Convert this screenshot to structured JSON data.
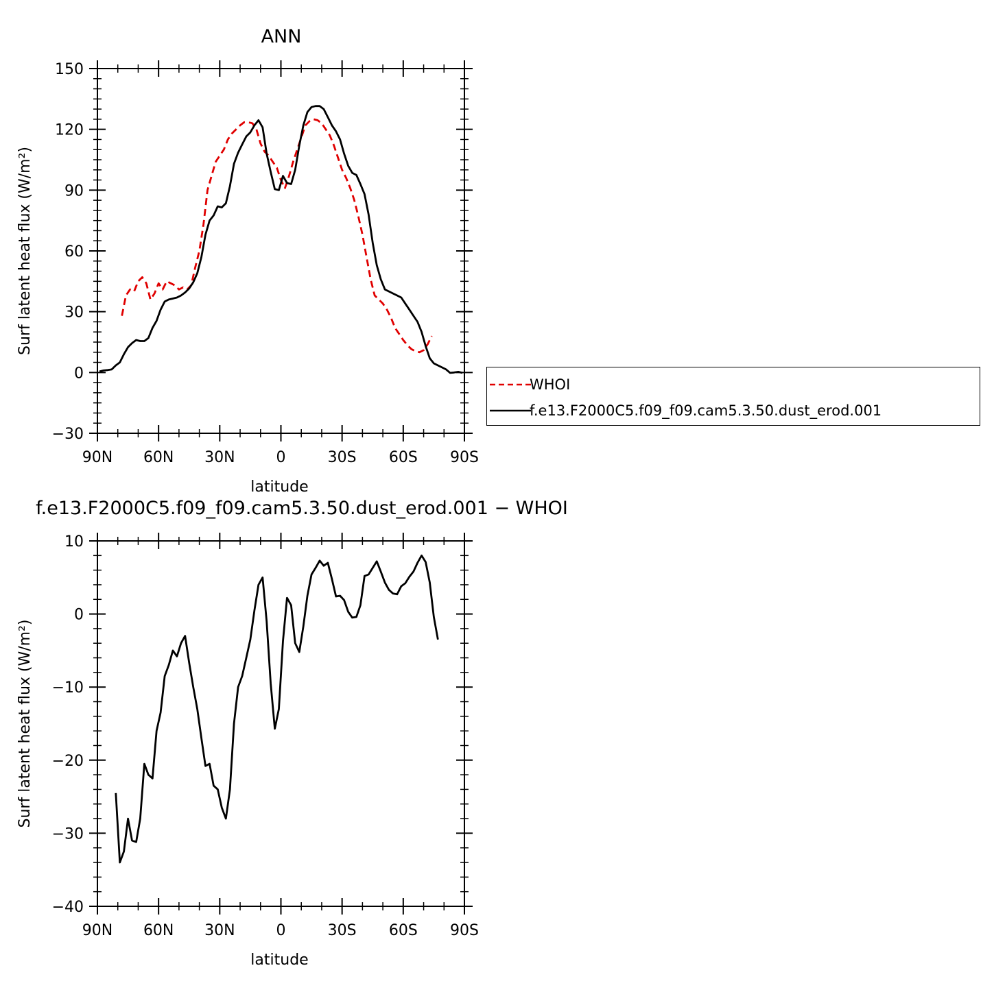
{
  "chart_data": [
    {
      "type": "line",
      "title": "ANN",
      "xlabel": "latitude",
      "ylabel": "Surf latent heat flux (W/m²)",
      "xlim": [
        90,
        -90
      ],
      "ylim": [
        -30,
        150
      ],
      "yticks": [
        -30,
        0,
        30,
        60,
        90,
        120,
        150
      ],
      "xticks": [
        90,
        60,
        30,
        0,
        -30,
        -60,
        -90
      ],
      "xticklabels": [
        "90N",
        "60N",
        "30N",
        "0",
        "30S",
        "60S",
        "90S"
      ],
      "legend": "right",
      "series": [
        {
          "name": "WHOI",
          "color": "#e00000",
          "style": "dashed",
          "x": [
            78,
            76,
            74,
            72,
            70,
            68,
            66,
            64,
            62,
            60,
            58,
            56,
            54,
            52,
            50,
            48,
            46,
            44,
            42,
            40,
            38,
            36,
            34,
            32,
            30,
            28,
            26,
            24,
            22,
            20,
            18,
            16,
            14,
            12,
            10,
            8,
            6,
            4,
            2,
            0,
            -2,
            -4,
            -6,
            -8,
            -10,
            -12,
            -14,
            -16,
            -18,
            -20,
            -22,
            -24,
            -26,
            -28,
            -30,
            -32,
            -34,
            -36,
            -38,
            -40,
            -42,
            -44,
            -46,
            -48,
            -50,
            -52,
            -54,
            -56,
            -58,
            -60,
            -62,
            -64,
            -66,
            -68,
            -70,
            -72,
            -74,
            -76,
            -78
          ],
          "y": [
            28,
            38,
            41,
            40,
            45,
            47,
            44,
            36,
            39,
            44,
            41,
            45,
            44,
            43,
            41,
            42,
            41,
            43,
            52,
            60,
            73,
            90,
            97,
            104,
            107,
            110,
            115,
            118,
            120,
            122,
            123.5,
            123.5,
            123,
            120,
            113,
            109,
            107,
            104,
            101,
            95,
            91,
            97,
            104,
            110,
            116,
            122,
            124,
            125,
            124.5,
            123,
            120,
            117,
            112,
            106,
            100,
            96,
            91,
            85,
            77,
            68,
            57,
            46,
            38,
            36,
            34,
            31,
            27,
            22,
            19,
            16,
            13.5,
            11.5,
            10.5,
            10,
            11,
            14,
            18,
            null,
            null
          ],
          "note": ""
        },
        {
          "name": "f.e13.F2000C5.f09_f09.cam5.3.50.dust_erod.001",
          "color": "#000000",
          "style": "solid",
          "x": [
            89,
            87,
            85,
            83,
            81,
            79,
            77,
            75,
            73,
            71,
            69,
            67,
            65,
            63,
            61,
            59,
            57,
            55,
            53,
            51,
            49,
            47,
            45,
            43,
            41,
            39,
            37,
            35,
            33,
            31,
            29,
            27,
            25,
            23,
            21,
            19,
            17,
            15,
            13,
            11,
            9,
            7,
            5,
            3,
            1,
            -1,
            -3,
            -5,
            -7,
            -9,
            -11,
            -13,
            -15,
            -17,
            -19,
            -21,
            -23,
            -25,
            -27,
            -29,
            -31,
            -33,
            -35,
            -37,
            -39,
            -41,
            -43,
            -45,
            -47,
            -49,
            -51,
            -53,
            -55,
            -57,
            -59,
            -61,
            -63,
            -65,
            -67,
            -69,
            -71,
            -73,
            -75,
            -77,
            -79,
            -81,
            -83,
            -85,
            -87,
            -89
          ],
          "y": [
            0.5,
            1,
            1.2,
            1.5,
            3.5,
            5,
            9,
            12.5,
            14.5,
            16,
            15.5,
            15.5,
            17,
            22,
            25.5,
            31,
            35,
            36,
            36.5,
            37,
            38,
            39.5,
            41.5,
            44.5,
            49,
            57,
            68,
            75,
            77.5,
            82,
            81.5,
            83.5,
            92,
            103,
            108.5,
            112.5,
            116.5,
            118.5,
            122,
            124.5,
            121,
            108,
            99,
            90.5,
            90,
            97,
            93.5,
            93,
            100,
            112,
            122,
            128.5,
            131,
            131.5,
            131.5,
            130,
            126,
            122,
            119,
            115,
            108,
            102,
            98.5,
            97.5,
            93,
            88,
            78,
            64,
            53,
            46,
            41,
            40,
            39,
            38,
            37,
            34,
            31,
            28,
            25,
            20,
            13,
            7,
            4.5,
            3.5,
            2.5,
            1.5,
            -0.2,
            0,
            0.3,
            -0.2
          ]
        }
      ]
    },
    {
      "type": "line",
      "title": "f.e13.F2000C5.f09_f09.cam5.3.50.dust_erod.001 − WHOI",
      "xlabel": "latitude",
      "ylabel": "Surf latent heat flux (W/m²)",
      "xlim": [
        90,
        -90
      ],
      "ylim": [
        -40,
        10
      ],
      "yticks": [
        -40,
        -30,
        -20,
        -10,
        0,
        10
      ],
      "xticks": [
        90,
        60,
        30,
        0,
        -30,
        -60,
        -90
      ],
      "xticklabels": [
        "90N",
        "60N",
        "30N",
        "0",
        "30S",
        "60S",
        "90S"
      ],
      "series": [
        {
          "name": "",
          "color": "#000000",
          "style": "solid",
          "x": [
            81,
            79,
            77,
            75,
            73,
            71,
            69,
            67,
            65,
            63,
            61,
            59,
            57,
            55,
            53,
            51,
            49,
            47,
            45,
            43,
            41,
            39,
            37,
            35,
            33,
            31,
            29,
            27,
            25,
            23,
            21,
            19,
            17,
            15,
            13,
            11,
            9,
            7,
            5,
            3,
            1,
            -1,
            -3,
            -5,
            -7,
            -9,
            -11,
            -13,
            -15,
            -17,
            -19,
            -21,
            -23,
            -25,
            -27,
            -29,
            -31,
            -33,
            -35,
            -37,
            -39,
            -41,
            -43,
            -45,
            -47,
            -49,
            -51,
            -53,
            -55,
            -57,
            -59,
            -61,
            -63,
            -65,
            -67,
            -69,
            -71,
            -73,
            -75,
            -77
          ],
          "y": [
            -24.5,
            -34,
            -32.5,
            -28,
            -31,
            -31.2,
            -28,
            -20.5,
            -22,
            -22.5,
            -16,
            -13.5,
            -8.5,
            -7,
            -5,
            -5.8,
            -4,
            -3,
            -6.7,
            -10,
            -13,
            -17,
            -20.8,
            -20.5,
            -23.5,
            -24,
            -26.5,
            -28,
            -24,
            -15,
            -10,
            -8.5,
            -6,
            -3.5,
            0.5,
            4,
            5,
            -1,
            -9.5,
            -15.7,
            -13,
            -3.7,
            2.2,
            1.2,
            -4,
            -5.2,
            -1.7,
            2.5,
            5.4,
            6.3,
            7.3,
            6.6,
            7,
            4.8,
            2.4,
            2.5,
            1.9,
            0.3,
            -0.5,
            -0.4,
            1.2,
            5.2,
            5.4,
            6.3,
            7.2,
            5.8,
            4.3,
            3.3,
            2.8,
            2.7,
            3.8,
            4.2,
            5.1,
            5.8,
            7,
            8,
            7.1,
            4.3,
            -0.4,
            -3.5
          ]
        }
      ]
    }
  ]
}
